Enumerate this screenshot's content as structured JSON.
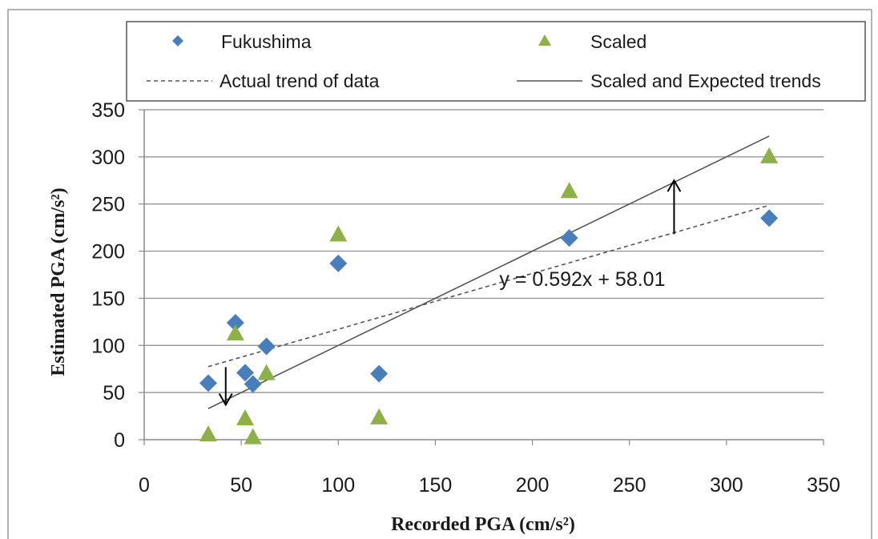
{
  "chart_data": {
    "type": "scatter",
    "xlabel": "Recorded PGA (cm/s²)",
    "ylabel": "Estimated PGA (cm/s²)",
    "xlim": [
      0,
      350
    ],
    "ylim": [
      0,
      350
    ],
    "xticks": [
      0,
      50,
      100,
      150,
      200,
      250,
      300,
      350
    ],
    "yticks": [
      0,
      50,
      100,
      150,
      200,
      250,
      300,
      350
    ],
    "grid": "horizontal",
    "legend_position": "top",
    "series": [
      {
        "name": "Fukushima",
        "marker": "diamond",
        "color": "#4a7ebb",
        "points": [
          [
            33,
            60
          ],
          [
            47,
            124
          ],
          [
            52,
            71
          ],
          [
            56,
            59
          ],
          [
            63,
            99
          ],
          [
            100,
            187
          ],
          [
            121,
            70
          ],
          [
            219,
            214
          ],
          [
            322,
            235
          ]
        ]
      },
      {
        "name": "Scaled",
        "marker": "triangle",
        "color": "#8db04a",
        "points": [
          [
            33,
            5
          ],
          [
            47,
            112
          ],
          [
            52,
            22
          ],
          [
            56,
            2
          ],
          [
            63,
            70
          ],
          [
            100,
            217
          ],
          [
            121,
            23
          ],
          [
            219,
            263
          ],
          [
            322,
            300
          ]
        ]
      }
    ],
    "lines": [
      {
        "name": "Actual trend of data",
        "style": "dashed",
        "color": "#555555",
        "from": [
          33,
          77.5
        ],
        "to": [
          322,
          248.6
        ]
      },
      {
        "name": "Scaled and Expected trends",
        "style": "solid",
        "color": "#555555",
        "from": [
          33,
          33
        ],
        "to": [
          322,
          322
        ]
      }
    ],
    "arrows": [
      {
        "direction": "down",
        "x": 42,
        "from_y": 77,
        "to_y": 37
      },
      {
        "direction": "up",
        "x": 273,
        "from_y": 218,
        "to_y": 275
      }
    ],
    "annotations": [
      {
        "text": "y = 0.592x + 58.01",
        "x": 183,
        "y": 163
      }
    ]
  }
}
